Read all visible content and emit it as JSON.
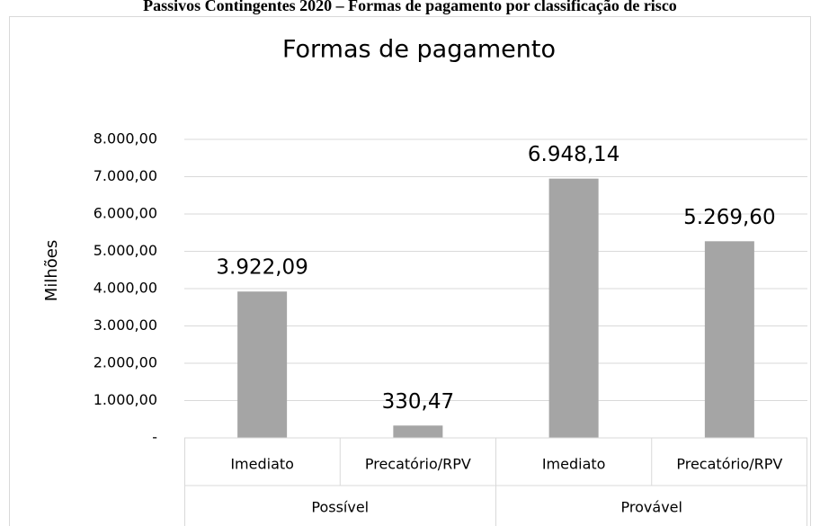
{
  "caption": "Passivos Contingentes 2020 – Formas de pagamento por classificação de risco",
  "chart_data": {
    "type": "bar",
    "title": "Formas de pagamento",
    "ylabel": "Milhões",
    "categories": [
      "Imediato",
      "Precatório/RPV",
      "Imediato",
      "Precatório/RPV"
    ],
    "groups": [
      {
        "name": "Possível",
        "size": 2
      },
      {
        "name": "Provável",
        "size": 2
      }
    ],
    "values": [
      3922.09,
      330.47,
      6948.14,
      5269.6
    ],
    "value_labels": [
      "3.922,09",
      "330,47",
      "6.948,14",
      "5.269,60"
    ],
    "color": "#a5a5a5",
    "ylim": [
      0,
      8000
    ],
    "yticks": [
      {
        "value": 0,
        "label": "-"
      },
      {
        "value": 1000,
        "label": "1.000,00"
      },
      {
        "value": 2000,
        "label": "2.000,00"
      },
      {
        "value": 3000,
        "label": "3.000,00"
      },
      {
        "value": 4000,
        "label": "4.000,00"
      },
      {
        "value": 5000,
        "label": "5.000,00"
      },
      {
        "value": 6000,
        "label": "6.000,00"
      },
      {
        "value": 7000,
        "label": "7.000,00"
      },
      {
        "value": 8000,
        "label": "8.000,00"
      }
    ],
    "grid": true
  }
}
